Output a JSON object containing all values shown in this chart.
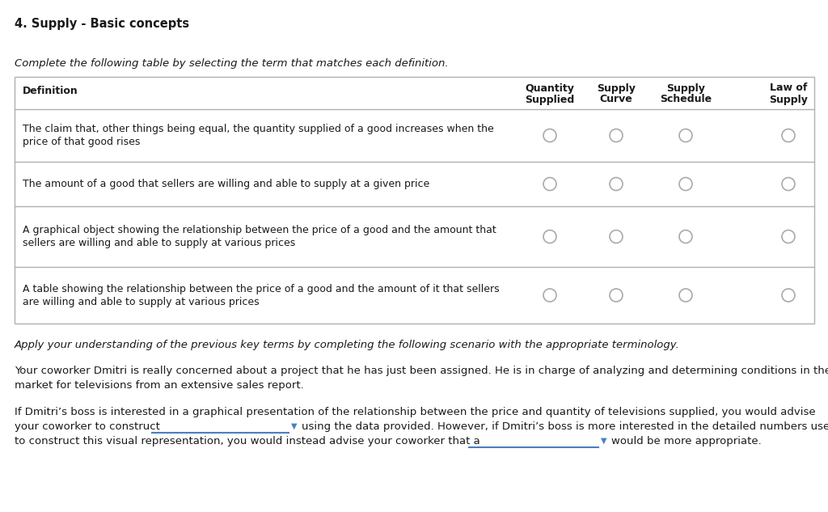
{
  "title": "4. Supply - Basic concepts",
  "instruction": "Complete the following table by selecting the term that matches each definition.",
  "col_headers_line1": [
    "Quantity",
    "Supply",
    "Supply",
    "Law of"
  ],
  "col_headers_line2": [
    "Supplied",
    "Curve",
    "Schedule",
    "Supply"
  ],
  "rows": [
    [
      "The claim that, other things being equal, the quantity supplied of a good increases when the",
      "price of that good rises"
    ],
    [
      "The amount of a good that sellers are willing and able to supply at a given price",
      ""
    ],
    [
      "A graphical object showing the relationship between the price of a good and the amount that",
      "sellers are willing and able to supply at various prices"
    ],
    [
      "A table showing the relationship between the price of a good and the amount of it that sellers",
      "are willing and able to supply at various prices"
    ]
  ],
  "scenario_intro": "Apply your understanding of the previous key terms by completing the following scenario with the appropriate terminology.",
  "scenario_p1_line1": "Your coworker Dmitri is really concerned about a project that he has just been assigned. He is in charge of analyzing and determining conditions in the",
  "scenario_p1_line2": "market for televisions from an extensive sales report.",
  "scenario_p2_line1": "If Dmitri’s boss is interested in a graphical presentation of the relationship between the price and quantity of televisions supplied, you would advise",
  "scenario_p2_line2a": "your coworker to construct",
  "scenario_p2_line2b": "using the data provided. However, if Dmitri’s boss is more interested in the detailed numbers used",
  "scenario_p2_line3a": "to construct this visual representation, you would instead advise your coworker that a",
  "scenario_p2_line3b": "would be more appropriate.",
  "bg_color": "#ffffff",
  "text_color": "#1a1a1a",
  "border_color": "#b0b0b0",
  "radio_edge_color": "#aaaaaa",
  "dropdown_color": "#4a7fc1",
  "title_fontsize": 10.5,
  "body_fontsize": 9.5,
  "table_fontsize": 9.0,
  "header_fontsize": 9.0
}
